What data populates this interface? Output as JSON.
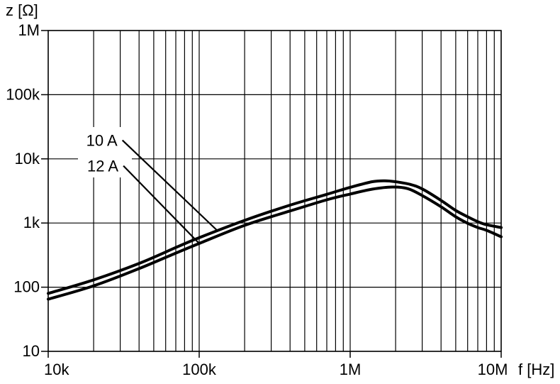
{
  "chart_data": {
    "type": "line",
    "title": "",
    "xlabel": "f [Hz]",
    "ylabel": "z [Ω]",
    "x_scale": "log",
    "y_scale": "log",
    "xlim": [
      10000,
      10000000
    ],
    "ylim": [
      10,
      1000000
    ],
    "grid": {
      "vertical_minor": true,
      "horizontal_minor": false,
      "style": "full-black-datasheet"
    },
    "x_ticks": [
      {
        "value": 10000,
        "label": "10k"
      },
      {
        "value": 100000,
        "label": "100k"
      },
      {
        "value": 1000000,
        "label": "1M"
      },
      {
        "value": 10000000,
        "label": "10M"
      }
    ],
    "y_ticks": [
      {
        "value": 10,
        "label": "10"
      },
      {
        "value": 100,
        "label": "100"
      },
      {
        "value": 1000,
        "label": "1k"
      },
      {
        "value": 10000,
        "label": "10k"
      },
      {
        "value": 100000,
        "label": "100k"
      },
      {
        "value": 1000000,
        "label": "1M"
      }
    ],
    "series": [
      {
        "name": "10 A",
        "points": [
          [
            10000,
            80
          ],
          [
            20000,
            130
          ],
          [
            40000,
            235
          ],
          [
            70000,
            415
          ],
          [
            100000,
            590
          ],
          [
            200000,
            1100
          ],
          [
            400000,
            1900
          ],
          [
            700000,
            2800
          ],
          [
            1000000,
            3600
          ],
          [
            1400000,
            4400
          ],
          [
            1700000,
            4550
          ],
          [
            2000000,
            4400
          ],
          [
            2500000,
            4000
          ],
          [
            3000000,
            3400
          ],
          [
            4000000,
            2250
          ],
          [
            5000000,
            1570
          ],
          [
            6000000,
            1250
          ],
          [
            7000000,
            1050
          ],
          [
            8000000,
            940
          ],
          [
            10000000,
            850
          ]
        ]
      },
      {
        "name": "12 A",
        "points": [
          [
            10000,
            65
          ],
          [
            20000,
            105
          ],
          [
            40000,
            195
          ],
          [
            70000,
            340
          ],
          [
            100000,
            480
          ],
          [
            200000,
            920
          ],
          [
            400000,
            1540
          ],
          [
            700000,
            2300
          ],
          [
            1000000,
            2830
          ],
          [
            1400000,
            3370
          ],
          [
            1900000,
            3640
          ],
          [
            2400000,
            3440
          ],
          [
            3000000,
            2680
          ],
          [
            4000000,
            1790
          ],
          [
            5000000,
            1250
          ],
          [
            6000000,
            990
          ],
          [
            7000000,
            850
          ],
          [
            8000000,
            770
          ],
          [
            10000000,
            610
          ]
        ]
      }
    ],
    "annotations": [
      {
        "label": "10 A",
        "leader_from": {
          "f": 31000,
          "z": 19500
        },
        "leader_to": {
          "f": 132000,
          "z": 760
        }
      },
      {
        "label": "12 A",
        "leader_from": {
          "f": 31500,
          "z": 7800
        },
        "leader_to": {
          "f": 100000,
          "z": 480
        }
      }
    ],
    "colors": {
      "line": "#000000",
      "grid": "#000000",
      "background": "#ffffff"
    },
    "legend_position": "none"
  }
}
